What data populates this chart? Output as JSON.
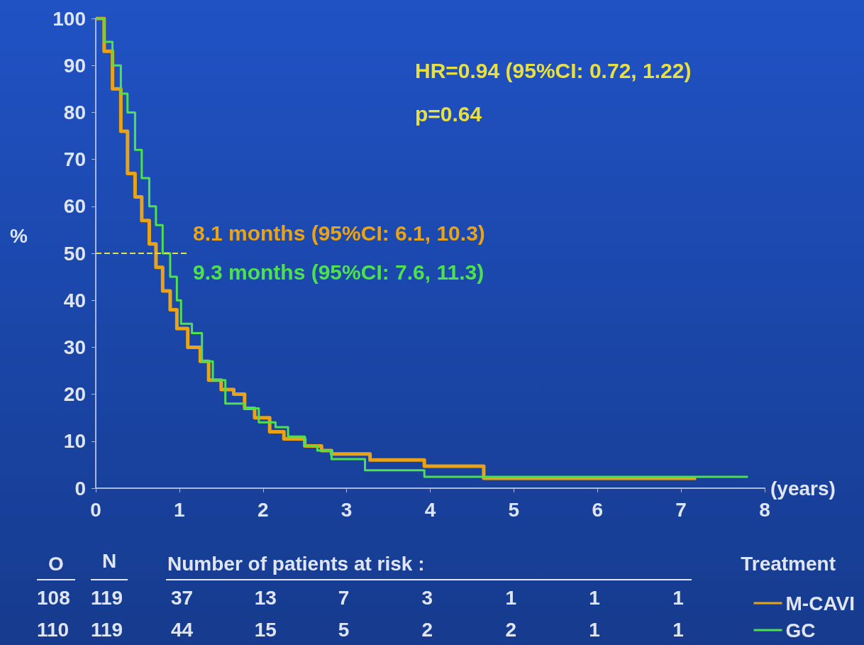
{
  "chart_data": {
    "type": "step",
    "xlabel": "(years)",
    "ylabel": "%",
    "legend": "bottom right",
    "legend_title": "Treatment",
    "grid": false,
    "marker": "none",
    "xlim": [
      0,
      8
    ],
    "xticks": [
      0,
      1,
      2,
      3,
      4,
      5,
      6,
      7,
      8
    ],
    "ylim": [
      0,
      100
    ],
    "yticks": [
      0,
      10,
      20,
      30,
      40,
      50,
      60,
      70,
      80,
      90,
      100
    ],
    "series": [
      {
        "name": "M-CAVI",
        "color": "#e8a317",
        "x": [
          0,
          0.1,
          0.2,
          0.3,
          0.38,
          0.47,
          0.55,
          0.64,
          0.72,
          0.8,
          0.89,
          0.97,
          1.1,
          1.25,
          1.35,
          1.5,
          1.65,
          1.78,
          1.9,
          2.08,
          2.25,
          2.5,
          2.7,
          2.82,
          3.28,
          3.93,
          4.64,
          7.18
        ],
        "values": [
          100,
          93,
          85,
          76,
          67,
          62,
          57,
          52,
          47,
          42,
          38,
          34,
          30,
          27,
          23,
          21,
          20,
          17,
          15,
          12,
          10.5,
          9,
          8,
          7.3,
          6,
          4.7,
          2.1,
          2.1
        ]
      },
      {
        "name": "GC",
        "color": "#4fe04f",
        "x": [
          0,
          0.1,
          0.2,
          0.3,
          0.38,
          0.47,
          0.55,
          0.64,
          0.72,
          0.8,
          0.89,
          0.97,
          1.02,
          1.15,
          1.27,
          1.4,
          1.55,
          1.78,
          1.95,
          2.15,
          2.3,
          2.5,
          2.65,
          2.82,
          3.22,
          3.93,
          7.8
        ],
        "values": [
          100,
          95,
          90,
          84,
          80,
          72,
          66,
          60,
          56,
          50,
          45,
          40,
          35,
          33,
          27,
          23,
          18,
          17,
          14,
          13,
          11,
          9,
          8,
          6.2,
          3.8,
          2.4,
          2.4
        ]
      }
    ],
    "ref_lines": [
      {
        "axis": "y",
        "value": 50,
        "color": "#e8e040",
        "line_style": "dashed"
      }
    ],
    "annotations": [
      "HR=0.94 (95%CI: 0.72, 1.22)",
      "p=0.64",
      "8.1 months (95%CI: 6.1, 10.3)",
      "9.3 months (95%CI: 7.6, 11.3)",
      "O",
      "N",
      "Number of patients at risk :",
      "108 119 37 13 7 3 1 1 1",
      "110 119 44 15 5 2 2 1 1"
    ]
  }
}
